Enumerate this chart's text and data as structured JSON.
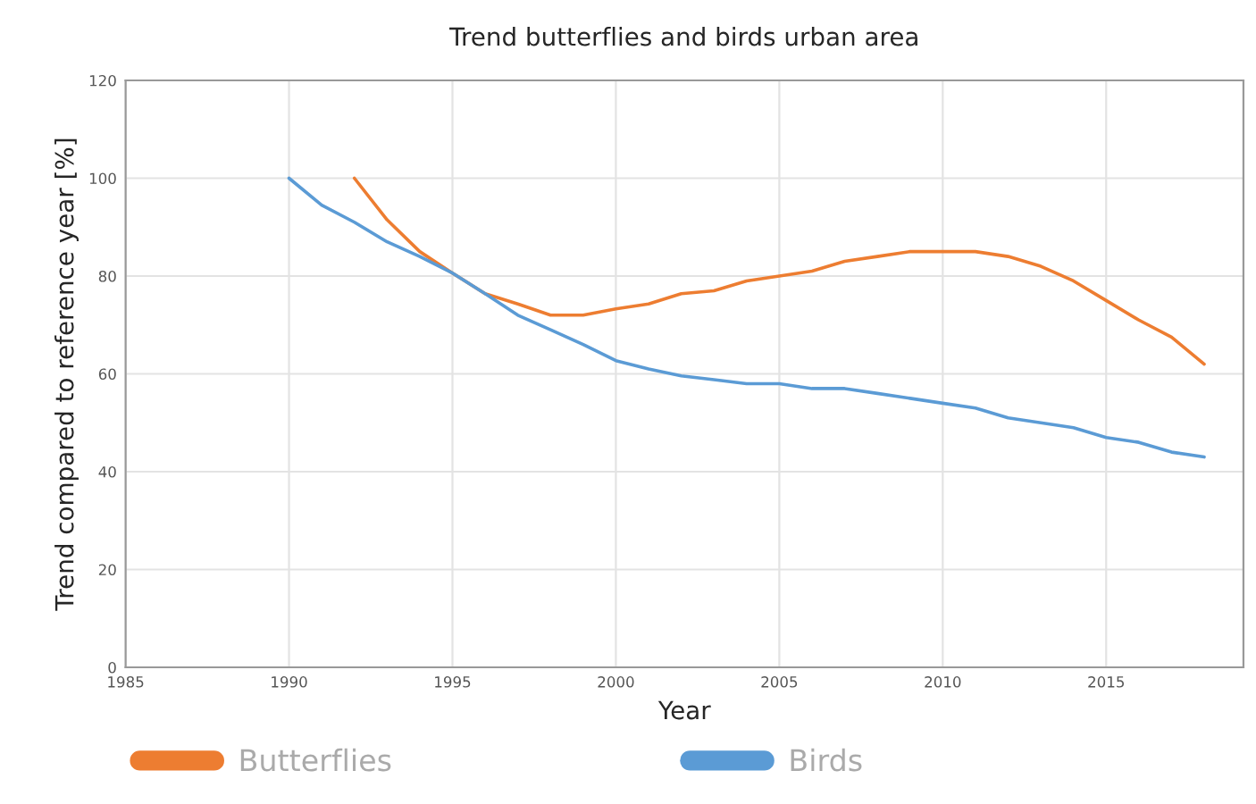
{
  "chart_data": {
    "type": "line",
    "title": "Trend butterflies and birds urban area",
    "xlabel": "Year",
    "ylabel": "Trend compared to reference year [%]",
    "series": [
      {
        "name": "Butterflies",
        "color": "#ed7d31",
        "x": [
          1992,
          1993,
          1994,
          1995,
          1996,
          1997,
          1998,
          1999,
          2000,
          2001,
          2002,
          2003,
          2004,
          2005,
          2006,
          2007,
          2008,
          2009,
          2010,
          2011,
          2012,
          2013,
          2014,
          2015,
          2016,
          2017,
          2018
        ],
        "values": [
          100,
          91.5,
          85,
          80.6,
          76.4,
          74.3,
          72,
          72,
          73.3,
          74.3,
          76.4,
          77,
          79,
          80,
          81,
          83,
          84,
          85,
          85,
          85,
          84,
          82,
          79,
          75,
          71,
          67.5,
          62
        ]
      },
      {
        "name": "Birds",
        "color": "#5b9bd5",
        "x": [
          1990,
          1991,
          1992,
          1993,
          1994,
          1995,
          1996,
          1997,
          1998,
          1999,
          2000,
          2001,
          2002,
          2003,
          2004,
          2005,
          2006,
          2007,
          2008,
          2009,
          2010,
          2011,
          2012,
          2013,
          2014,
          2015,
          2016,
          2017,
          2018
        ],
        "values": [
          100,
          94.5,
          91,
          87,
          84,
          80.6,
          76.4,
          72,
          69,
          66,
          62.7,
          61,
          59.6,
          58.8,
          58,
          58,
          57,
          57,
          56,
          55,
          54,
          53,
          51,
          50,
          49,
          47,
          46,
          44,
          43
        ]
      }
    ],
    "xlim": [
      1985,
      2019.2
    ],
    "xticks": [
      1985,
      1990,
      1995,
      2000,
      2005,
      2010,
      2015
    ],
    "ylim": [
      0,
      120
    ],
    "yticks": [
      0,
      20,
      40,
      60,
      80,
      100,
      120
    ],
    "grid": true,
    "legend": "bottom",
    "marker": "none",
    "line_style": "solid"
  }
}
